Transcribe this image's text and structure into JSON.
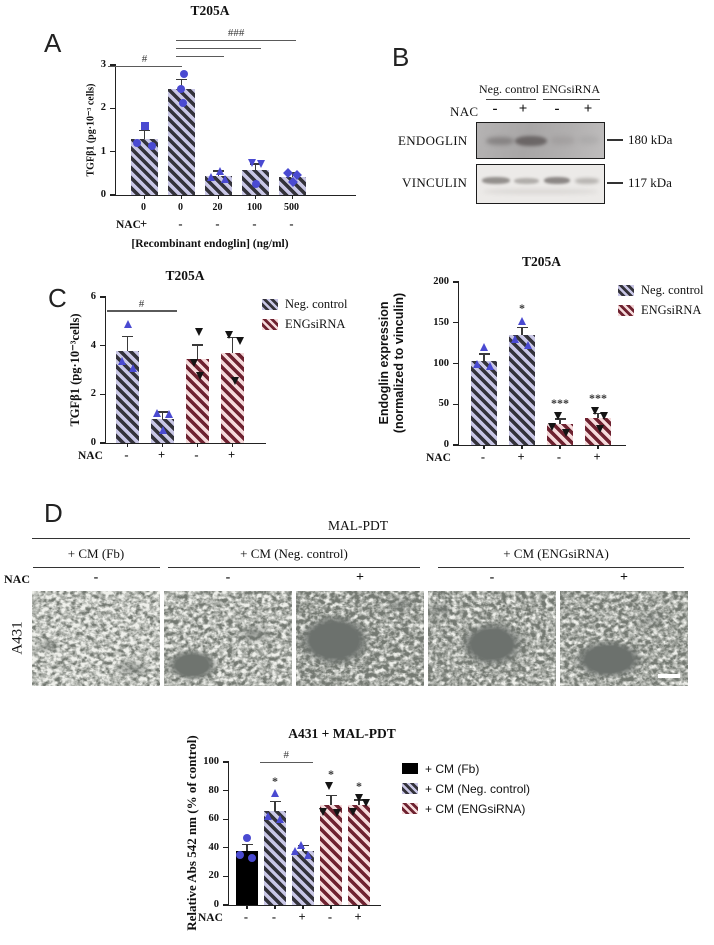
{
  "colors": {
    "point_blue": "#4a4ad1",
    "point_black": "#141414",
    "bar_blue_fill": "#c9c7e6",
    "bar_blue_stripe": "#34333b",
    "bar_red_fill": "#f5dadb",
    "bar_red_stripe": "#6e2230",
    "bar_black": "#000000"
  },
  "panels": {
    "a": "A",
    "b": "B",
    "c": "C",
    "d": "D"
  },
  "chart_data": [
    {
      "id": "panelA",
      "type": "bar",
      "title": "T205A",
      "ylabel": "TGFβ1 (pg·10⁻³ cells)",
      "xlabel": "[Recombinant endoglin] (ng/ml)",
      "nac_label": "NAC",
      "ylim": [
        0,
        3
      ],
      "yticks": [
        0,
        1,
        2,
        3
      ],
      "categories": [
        "0",
        "0",
        "20",
        "100",
        "500"
      ],
      "nac": [
        "+",
        "-",
        "-",
        "-",
        "-"
      ],
      "bars": [
        {
          "value": 1.3,
          "err": 0.17,
          "style": "blue-hatch",
          "points": [
            {
              "v": 1.6,
              "dx": 0,
              "shape": "square"
            },
            {
              "v": 1.2,
              "dx": -8,
              "shape": "circle"
            },
            {
              "v": 1.13,
              "dx": 7,
              "shape": "circle"
            }
          ]
        },
        {
          "value": 2.45,
          "err": 0.2,
          "style": "blue-hatch",
          "points": [
            {
              "v": 2.8,
              "dx": 2,
              "shape": "circle"
            },
            {
              "v": 2.45,
              "dx": -1,
              "shape": "circle"
            },
            {
              "v": 2.12,
              "dx": 1,
              "shape": "circle"
            }
          ]
        },
        {
          "value": 0.44,
          "err": 0.1,
          "style": "blue-hatch",
          "points": [
            {
              "v": 0.56,
              "dx": 1,
              "shape": "triangle-up"
            },
            {
              "v": 0.42,
              "dx": -8,
              "shape": "triangle-up"
            },
            {
              "v": 0.36,
              "dx": 6,
              "shape": "triangle-up"
            }
          ]
        },
        {
          "value": 0.57,
          "err": 0.13,
          "style": "blue-hatch",
          "points": [
            {
              "v": 0.75,
              "dx": -4,
              "shape": "triangle-down"
            },
            {
              "v": 0.72,
              "dx": 5,
              "shape": "triangle-down"
            },
            {
              "v": 0.26,
              "dx": 0,
              "shape": "circle"
            }
          ]
        },
        {
          "value": 0.42,
          "err": 0.07,
          "style": "blue-hatch",
          "points": [
            {
              "v": 0.5,
              "dx": -5,
              "shape": "diamond"
            },
            {
              "v": 0.46,
              "dx": 4,
              "shape": "diamond"
            },
            {
              "v": 0.3,
              "dx": 0,
              "shape": "diamond"
            }
          ]
        }
      ],
      "brackets": [
        {
          "from": -1,
          "to": 1,
          "y": 2.96,
          "label": "#"
        },
        {
          "from": 0.85,
          "to": 2.15,
          "y": 3.19,
          "label": ""
        },
        {
          "from": 0.85,
          "to": 3.15,
          "y": 3.37,
          "label": ""
        },
        {
          "from": 0.85,
          "to": 4.1,
          "y": 3.56,
          "label": "###"
        }
      ]
    },
    {
      "id": "panelC1",
      "type": "bar",
      "title": "T205A",
      "ylabel": "TGFβ1 (pg·10⁻³cells)",
      "nac_label": "NAC",
      "ylim": [
        0,
        6
      ],
      "yticks": [
        0,
        2,
        4,
        6
      ],
      "nac": [
        "-",
        "+",
        "-",
        "+"
      ],
      "bars": [
        {
          "value": 3.8,
          "err": 0.55,
          "style": "blue-hatch",
          "points": [
            {
              "v": 4.9,
              "dx": 0,
              "shape": "triangle-up"
            },
            {
              "v": 3.35,
              "dx": -6,
              "shape": "triangle-up"
            },
            {
              "v": 3.1,
              "dx": 5,
              "shape": "triangle-up"
            }
          ]
        },
        {
          "value": 1.0,
          "err": 0.25,
          "style": "blue-hatch",
          "points": [
            {
              "v": 1.25,
              "dx": -6,
              "shape": "triangle-up"
            },
            {
              "v": 1.18,
              "dx": 6,
              "shape": "triangle-up"
            },
            {
              "v": 0.55,
              "dx": 0,
              "shape": "triangle-up"
            }
          ]
        },
        {
          "value": 3.45,
          "err": 0.55,
          "style": "red-hatch",
          "points": [
            {
              "v": 4.55,
              "dx": 1,
              "shape": "triangle-down"
            },
            {
              "v": 3.3,
              "dx": -4,
              "shape": "triangle-down"
            },
            {
              "v": 2.75,
              "dx": 2,
              "shape": "triangle-down"
            }
          ]
        },
        {
          "value": 3.7,
          "err": 0.6,
          "style": "red-hatch",
          "points": [
            {
              "v": 4.45,
              "dx": -4,
              "shape": "triangle-down"
            },
            {
              "v": 4.2,
              "dx": 7,
              "shape": "triangle-down"
            },
            {
              "v": 2.55,
              "dx": 2,
              "shape": "triangle-down"
            }
          ]
        }
      ],
      "brackets": [
        {
          "from": -0.6,
          "to": 1.4,
          "y": 5.4,
          "label": "#"
        }
      ],
      "legend": [
        {
          "label": "Neg. control",
          "style": "blue-hatch"
        },
        {
          "label": "ENGsiRNA",
          "style": "red-hatch"
        }
      ]
    },
    {
      "id": "panelC2",
      "type": "bar",
      "title": "T205A",
      "ylabel": "Endoglin expression\n(normalized to vinculin)",
      "nac_label": "NAC",
      "ylim": [
        0,
        200
      ],
      "yticks": [
        0,
        50,
        100,
        150,
        200
      ],
      "nac": [
        "-",
        "+",
        "-",
        "+"
      ],
      "bars": [
        {
          "value": 103,
          "err": 8,
          "style": "blue-hatch",
          "points": [
            {
              "v": 120,
              "dx": 0,
              "shape": "triangle-up"
            },
            {
              "v": 100,
              "dx": -7,
              "shape": "triangle-up"
            },
            {
              "v": 97,
              "dx": 6,
              "shape": "triangle-up"
            }
          ]
        },
        {
          "value": 135,
          "err": 8,
          "style": "blue-hatch",
          "sig": "*",
          "points": [
            {
              "v": 152,
              "dx": 0,
              "shape": "triangle-up"
            },
            {
              "v": 130,
              "dx": -7,
              "shape": "triangle-up"
            },
            {
              "v": 123,
              "dx": 6,
              "shape": "triangle-up"
            }
          ]
        },
        {
          "value": 26,
          "err": 5,
          "style": "red-hatch",
          "sig": "***",
          "points": [
            {
              "v": 35,
              "dx": -2,
              "shape": "triangle-down"
            },
            {
              "v": 22,
              "dx": -8,
              "shape": "triangle-down"
            },
            {
              "v": 15,
              "dx": 6,
              "shape": "triangle-down"
            }
          ]
        },
        {
          "value": 33,
          "err": 5,
          "style": "red-hatch",
          "sig": "***",
          "points": [
            {
              "v": 42,
              "dx": -3,
              "shape": "triangle-down"
            },
            {
              "v": 36,
              "dx": 6,
              "shape": "triangle-down"
            },
            {
              "v": 20,
              "dx": 2,
              "shape": "triangle-down"
            }
          ]
        }
      ],
      "brackets": [],
      "legend": [
        {
          "label": "Neg. control",
          "style": "blue-hatch"
        },
        {
          "label": "ENGsiRNA",
          "style": "red-hatch"
        }
      ]
    },
    {
      "id": "panelD",
      "type": "bar",
      "title": "A431 + MAL-PDT",
      "ylabel": "Relative Abs 542 nm (% of control)",
      "nac_label": "NAC",
      "ylim": [
        0,
        100
      ],
      "yticks": [
        0,
        20,
        40,
        60,
        80,
        100
      ],
      "nac": [
        "-",
        "-",
        "+",
        "-",
        "+"
      ],
      "bars": [
        {
          "value": 38,
          "err": 4,
          "style": "black-solid",
          "points": [
            {
              "v": 47,
              "dx": 0,
              "shape": "circle"
            },
            {
              "v": 35,
              "dx": -7,
              "shape": "circle"
            },
            {
              "v": 33,
              "dx": 5,
              "shape": "circle"
            }
          ]
        },
        {
          "value": 66,
          "err": 6,
          "style": "blue-hatch",
          "sig": "*",
          "points": [
            {
              "v": 78,
              "dx": 0,
              "shape": "triangle-up"
            },
            {
              "v": 62,
              "dx": -7,
              "shape": "triangle-up"
            },
            {
              "v": 60,
              "dx": 5,
              "shape": "triangle-up"
            }
          ]
        },
        {
          "value": 38,
          "err": 3,
          "style": "blue-hatch",
          "points": [
            {
              "v": 42,
              "dx": -2,
              "shape": "triangle-up"
            },
            {
              "v": 38,
              "dx": -8,
              "shape": "triangle-up"
            },
            {
              "v": 35,
              "dx": 5,
              "shape": "triangle-up"
            }
          ]
        },
        {
          "value": 70,
          "err": 6,
          "style": "red-hatch",
          "sig": "*",
          "points": [
            {
              "v": 83,
              "dx": -2,
              "shape": "triangle-down"
            },
            {
              "v": 65,
              "dx": -8,
              "shape": "triangle-down"
            },
            {
              "v": 64,
              "dx": 6,
              "shape": "triangle-down"
            }
          ]
        },
        {
          "value": 70,
          "err": 3,
          "style": "red-hatch",
          "sig": "*",
          "points": [
            {
              "v": 75,
              "dx": 0,
              "shape": "triangle-down"
            },
            {
              "v": 71,
              "dx": 7,
              "shape": "triangle-down"
            },
            {
              "v": 65,
              "dx": -6,
              "shape": "triangle-down"
            }
          ]
        }
      ],
      "brackets": [
        {
          "from": 0.45,
          "to": 2.35,
          "y": 99,
          "label": "#"
        }
      ],
      "legend": [
        {
          "label": "+ CM (Fb)",
          "style": "black-solid"
        },
        {
          "label": "+ CM (Neg. control)",
          "style": "blue-hatch"
        },
        {
          "label": "+ CM (ENGsiRNA)",
          "style": "red-hatch"
        }
      ]
    }
  ],
  "blot": {
    "groups": [
      "Neg. control",
      "ENGsiRNA"
    ],
    "nac_label": "NAC",
    "lanes": [
      "-",
      "+",
      "-",
      "+"
    ],
    "rows": [
      {
        "label": "ENDOGLIN",
        "kda": "180 kDa"
      },
      {
        "label": "VINCULIN",
        "kda": "117 kDa"
      }
    ]
  },
  "micro": {
    "treatment": "MAL-PDT",
    "cell_line": "A431",
    "nac_label": "NAC",
    "groups": [
      {
        "label": "+ CM (Fb)"
      },
      {
        "label": "+ CM (Neg. control)"
      },
      {
        "label": "+ CM (ENGsiRNA)"
      }
    ],
    "nac_row": [
      "-",
      "-",
      "+",
      "-",
      "+"
    ]
  }
}
